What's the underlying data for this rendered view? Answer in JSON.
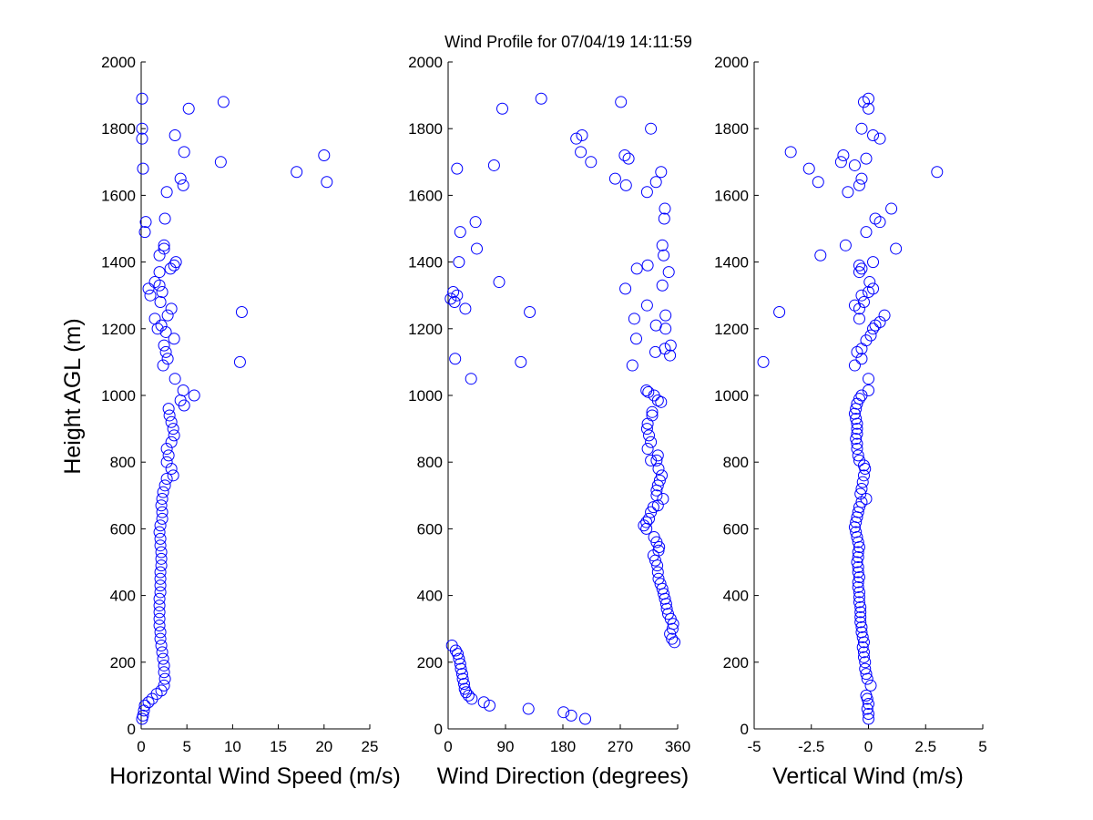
{
  "chart_data": [
    {
      "type": "scatter",
      "title": "Wind Profile for  07/04/19 14:11:59",
      "xlabel": "Horizontal Wind Speed (m/s)",
      "ylabel": "Height AGL (m)",
      "xlim": [
        0,
        25
      ],
      "ylim": [
        0,
        2000
      ],
      "xticks": [
        0,
        5,
        10,
        15,
        20,
        25
      ],
      "xtick_labels": [
        "0",
        "5",
        "10",
        "15",
        "20",
        "25"
      ],
      "yticks": [
        0,
        200,
        400,
        600,
        800,
        1000,
        1200,
        1400,
        1600,
        1800,
        2000
      ],
      "marker_color": "#0000ff",
      "points": [
        [
          0.1,
          30
        ],
        [
          0.2,
          40
        ],
        [
          0.3,
          55
        ],
        [
          0.4,
          70
        ],
        [
          0.8,
          80
        ],
        [
          1.2,
          90
        ],
        [
          1.7,
          105
        ],
        [
          2.2,
          115
        ],
        [
          2.5,
          130
        ],
        [
          2.6,
          150
        ],
        [
          2.5,
          170
        ],
        [
          2.5,
          190
        ],
        [
          2.4,
          210
        ],
        [
          2.3,
          230
        ],
        [
          2.2,
          250
        ],
        [
          2.1,
          270
        ],
        [
          2.1,
          290
        ],
        [
          2.0,
          310
        ],
        [
          2.0,
          330
        ],
        [
          2.0,
          350
        ],
        [
          2.0,
          370
        ],
        [
          2.0,
          390
        ],
        [
          2.1,
          410
        ],
        [
          2.1,
          430
        ],
        [
          2.1,
          450
        ],
        [
          2.1,
          470
        ],
        [
          2.2,
          490
        ],
        [
          2.2,
          510
        ],
        [
          2.2,
          530
        ],
        [
          2.1,
          550
        ],
        [
          2.1,
          570
        ],
        [
          2.0,
          590
        ],
        [
          2.1,
          610
        ],
        [
          2.3,
          630
        ],
        [
          2.3,
          650
        ],
        [
          2.2,
          670
        ],
        [
          2.3,
          690
        ],
        [
          2.4,
          710
        ],
        [
          2.6,
          730
        ],
        [
          2.8,
          750
        ],
        [
          3.5,
          760
        ],
        [
          3.3,
          780
        ],
        [
          2.8,
          800
        ],
        [
          3.0,
          820
        ],
        [
          2.8,
          840
        ],
        [
          3.3,
          860
        ],
        [
          3.6,
          880
        ],
        [
          3.5,
          900
        ],
        [
          3.3,
          920
        ],
        [
          3.1,
          940
        ],
        [
          3.0,
          960
        ],
        [
          4.7,
          970
        ],
        [
          4.3,
          985
        ],
        [
          5.8,
          1000
        ],
        [
          4.6,
          1015
        ],
        [
          3.7,
          1050
        ],
        [
          2.4,
          1090
        ],
        [
          10.8,
          1100
        ],
        [
          2.9,
          1110
        ],
        [
          2.7,
          1130
        ],
        [
          2.5,
          1150
        ],
        [
          3.6,
          1170
        ],
        [
          2.7,
          1190
        ],
        [
          1.8,
          1200
        ],
        [
          2.2,
          1210
        ],
        [
          1.5,
          1230
        ],
        [
          2.9,
          1240
        ],
        [
          11.0,
          1250
        ],
        [
          3.3,
          1260
        ],
        [
          2.1,
          1280
        ],
        [
          1.0,
          1300
        ],
        [
          2.3,
          1310
        ],
        [
          0.8,
          1320
        ],
        [
          2.0,
          1330
        ],
        [
          1.5,
          1340
        ],
        [
          2.0,
          1370
        ],
        [
          3.2,
          1380
        ],
        [
          3.6,
          1390
        ],
        [
          3.8,
          1400
        ],
        [
          2.0,
          1420
        ],
        [
          2.5,
          1440
        ],
        [
          2.5,
          1450
        ],
        [
          0.4,
          1490
        ],
        [
          0.5,
          1520
        ],
        [
          2.6,
          1530
        ],
        [
          2.8,
          1610
        ],
        [
          4.6,
          1630
        ],
        [
          20.3,
          1640
        ],
        [
          4.3,
          1650
        ],
        [
          17.0,
          1670
        ],
        [
          0.2,
          1680
        ],
        [
          8.7,
          1700
        ],
        [
          20.0,
          1720
        ],
        [
          4.7,
          1730
        ],
        [
          0.1,
          1770
        ],
        [
          3.7,
          1780
        ],
        [
          0.1,
          1800
        ],
        [
          5.2,
          1860
        ],
        [
          9.0,
          1880
        ],
        [
          0.1,
          1890
        ]
      ]
    },
    {
      "type": "scatter",
      "xlabel": "Wind Direction (degrees)",
      "xlim": [
        0,
        360
      ],
      "ylim": [
        0,
        2000
      ],
      "xticks": [
        0,
        90,
        180,
        270,
        360
      ],
      "xtick_labels": [
        "0",
        "90",
        "180",
        "270",
        "360"
      ],
      "yticks": [
        0,
        200,
        400,
        600,
        800,
        1000,
        1200,
        1400,
        1600,
        1800,
        2000
      ],
      "marker_color": "#0000ff",
      "points": [
        [
          215,
          30
        ],
        [
          193,
          40
        ],
        [
          181,
          50
        ],
        [
          126,
          60
        ],
        [
          65,
          70
        ],
        [
          56,
          80
        ],
        [
          37,
          90
        ],
        [
          32,
          100
        ],
        [
          28,
          110
        ],
        [
          26,
          120
        ],
        [
          25,
          135
        ],
        [
          23,
          150
        ],
        [
          22,
          165
        ],
        [
          20,
          180
        ],
        [
          19,
          195
        ],
        [
          17,
          210
        ],
        [
          15,
          225
        ],
        [
          12,
          235
        ],
        [
          6,
          250
        ],
        [
          355,
          260
        ],
        [
          351,
          270
        ],
        [
          348,
          285
        ],
        [
          352,
          300
        ],
        [
          353,
          315
        ],
        [
          349,
          330
        ],
        [
          345,
          345
        ],
        [
          343,
          360
        ],
        [
          342,
          375
        ],
        [
          340,
          390
        ],
        [
          338,
          405
        ],
        [
          336,
          420
        ],
        [
          333,
          435
        ],
        [
          330,
          450
        ],
        [
          329,
          470
        ],
        [
          328,
          490
        ],
        [
          325,
          505
        ],
        [
          322,
          520
        ],
        [
          330,
          535
        ],
        [
          331,
          545
        ],
        [
          327,
          560
        ],
        [
          323,
          575
        ],
        [
          311,
          600
        ],
        [
          307,
          610
        ],
        [
          311,
          620
        ],
        [
          315,
          630
        ],
        [
          318,
          650
        ],
        [
          322,
          665
        ],
        [
          329,
          670
        ],
        [
          337,
          690
        ],
        [
          327,
          700
        ],
        [
          327,
          715
        ],
        [
          329,
          730
        ],
        [
          332,
          745
        ],
        [
          335,
          760
        ],
        [
          330,
          780
        ],
        [
          318,
          805
        ],
        [
          327,
          805
        ],
        [
          329,
          820
        ],
        [
          313,
          840
        ],
        [
          318,
          860
        ],
        [
          315,
          880
        ],
        [
          312,
          900
        ],
        [
          313,
          915
        ],
        [
          320,
          940
        ],
        [
          320,
          950
        ],
        [
          334,
          980
        ],
        [
          329,
          985
        ],
        [
          323,
          1000
        ],
        [
          314,
          1010
        ],
        [
          311,
          1015
        ],
        [
          36,
          1050
        ],
        [
          289,
          1090
        ],
        [
          114,
          1100
        ],
        [
          11,
          1110
        ],
        [
          348,
          1120
        ],
        [
          325,
          1130
        ],
        [
          340,
          1140
        ],
        [
          349,
          1150
        ],
        [
          295,
          1170
        ],
        [
          341,
          1200
        ],
        [
          326,
          1210
        ],
        [
          292,
          1230
        ],
        [
          341,
          1240
        ],
        [
          128,
          1250
        ],
        [
          27,
          1260
        ],
        [
          312,
          1270
        ],
        [
          10,
          1280
        ],
        [
          4,
          1290
        ],
        [
          14,
          1300
        ],
        [
          8,
          1310
        ],
        [
          278,
          1320
        ],
        [
          336,
          1330
        ],
        [
          80,
          1340
        ],
        [
          346,
          1370
        ],
        [
          296,
          1380
        ],
        [
          313,
          1390
        ],
        [
          17,
          1400
        ],
        [
          338,
          1420
        ],
        [
          45,
          1440
        ],
        [
          336,
          1450
        ],
        [
          19,
          1490
        ],
        [
          43,
          1520
        ],
        [
          339,
          1530
        ],
        [
          340,
          1560
        ],
        [
          312,
          1610
        ],
        [
          279,
          1630
        ],
        [
          326,
          1640
        ],
        [
          334,
          1670
        ],
        [
          14,
          1680
        ],
        [
          72,
          1690
        ],
        [
          224,
          1700
        ],
        [
          283,
          1710
        ],
        [
          262,
          1650
        ],
        [
          277,
          1720
        ],
        [
          208,
          1730
        ],
        [
          201,
          1770
        ],
        [
          210,
          1780
        ],
        [
          318,
          1800
        ],
        [
          85,
          1860
        ],
        [
          271,
          1880
        ],
        [
          146,
          1890
        ]
      ]
    },
    {
      "type": "scatter",
      "xlabel": "Vertical Wind (m/s)",
      "xlim": [
        -5,
        5
      ],
      "ylim": [
        0,
        2000
      ],
      "xticks": [
        -5,
        -2.5,
        0,
        2.5,
        5
      ],
      "xtick_labels": [
        "-5",
        "-2.5",
        "0",
        "2.5",
        "5"
      ],
      "yticks": [
        0,
        200,
        400,
        600,
        800,
        1000,
        1200,
        1400,
        1600,
        1800,
        2000
      ],
      "marker_color": "#0000ff",
      "points": [
        [
          0.0,
          30
        ],
        [
          0.0,
          45
        ],
        [
          -0.05,
          60
        ],
        [
          0.0,
          75
        ],
        [
          -0.05,
          90
        ],
        [
          -0.1,
          100
        ],
        [
          0.1,
          130
        ],
        [
          -0.05,
          150
        ],
        [
          -0.1,
          165
        ],
        [
          -0.15,
          180
        ],
        [
          -0.15,
          200
        ],
        [
          -0.2,
          215
        ],
        [
          -0.2,
          230
        ],
        [
          -0.25,
          245
        ],
        [
          -0.2,
          260
        ],
        [
          -0.25,
          275
        ],
        [
          -0.3,
          290
        ],
        [
          -0.3,
          305
        ],
        [
          -0.35,
          320
        ],
        [
          -0.35,
          335
        ],
        [
          -0.35,
          350
        ],
        [
          -0.35,
          365
        ],
        [
          -0.4,
          380
        ],
        [
          -0.4,
          395
        ],
        [
          -0.4,
          410
        ],
        [
          -0.45,
          425
        ],
        [
          -0.45,
          440
        ],
        [
          -0.4,
          455
        ],
        [
          -0.45,
          470
        ],
        [
          -0.45,
          485
        ],
        [
          -0.5,
          500
        ],
        [
          -0.45,
          515
        ],
        [
          -0.45,
          530
        ],
        [
          -0.4,
          545
        ],
        [
          -0.45,
          560
        ],
        [
          -0.5,
          575
        ],
        [
          -0.55,
          590
        ],
        [
          -0.6,
          605
        ],
        [
          -0.55,
          620
        ],
        [
          -0.5,
          635
        ],
        [
          -0.45,
          650
        ],
        [
          -0.4,
          665
        ],
        [
          -0.3,
          680
        ],
        [
          -0.1,
          690
        ],
        [
          -0.35,
          705
        ],
        [
          -0.3,
          720
        ],
        [
          -0.25,
          740
        ],
        [
          -0.2,
          760
        ],
        [
          -0.15,
          780
        ],
        [
          -0.2,
          790
        ],
        [
          -0.4,
          805
        ],
        [
          -0.45,
          820
        ],
        [
          -0.5,
          840
        ],
        [
          -0.5,
          855
        ],
        [
          -0.55,
          870
        ],
        [
          -0.5,
          885
        ],
        [
          -0.5,
          900
        ],
        [
          -0.5,
          915
        ],
        [
          -0.55,
          930
        ],
        [
          -0.6,
          945
        ],
        [
          -0.55,
          960
        ],
        [
          -0.5,
          975
        ],
        [
          -0.4,
          990
        ],
        [
          -0.3,
          1000
        ],
        [
          0.0,
          1015
        ],
        [
          0.0,
          1050
        ],
        [
          -0.6,
          1090
        ],
        [
          -4.6,
          1100
        ],
        [
          -0.3,
          1110
        ],
        [
          -0.5,
          1130
        ],
        [
          -0.3,
          1140
        ],
        [
          -0.1,
          1165
        ],
        [
          0.1,
          1180
        ],
        [
          0.2,
          1200
        ],
        [
          0.3,
          1210
        ],
        [
          0.5,
          1220
        ],
        [
          -0.4,
          1230
        ],
        [
          0.7,
          1240
        ],
        [
          -3.9,
          1250
        ],
        [
          -0.4,
          1260
        ],
        [
          -0.6,
          1270
        ],
        [
          -0.2,
          1280
        ],
        [
          -0.3,
          1300
        ],
        [
          0.0,
          1310
        ],
        [
          0.2,
          1320
        ],
        [
          0.05,
          1340
        ],
        [
          -0.4,
          1370
        ],
        [
          -0.3,
          1380
        ],
        [
          -0.4,
          1390
        ],
        [
          0.2,
          1400
        ],
        [
          -2.1,
          1420
        ],
        [
          1.2,
          1440
        ],
        [
          -1.0,
          1450
        ],
        [
          -0.1,
          1490
        ],
        [
          0.5,
          1520
        ],
        [
          0.3,
          1530
        ],
        [
          1.0,
          1560
        ],
        [
          -0.9,
          1610
        ],
        [
          -0.4,
          1630
        ],
        [
          -2.2,
          1640
        ],
        [
          -0.3,
          1650
        ],
        [
          3.0,
          1670
        ],
        [
          -2.6,
          1680
        ],
        [
          -0.6,
          1690
        ],
        [
          -1.2,
          1700
        ],
        [
          -0.1,
          1710
        ],
        [
          -1.1,
          1720
        ],
        [
          -3.4,
          1730
        ],
        [
          0.5,
          1770
        ],
        [
          0.2,
          1780
        ],
        [
          -0.3,
          1800
        ],
        [
          0.0,
          1860
        ],
        [
          -0.2,
          1880
        ],
        [
          0.0,
          1890
        ]
      ]
    }
  ]
}
